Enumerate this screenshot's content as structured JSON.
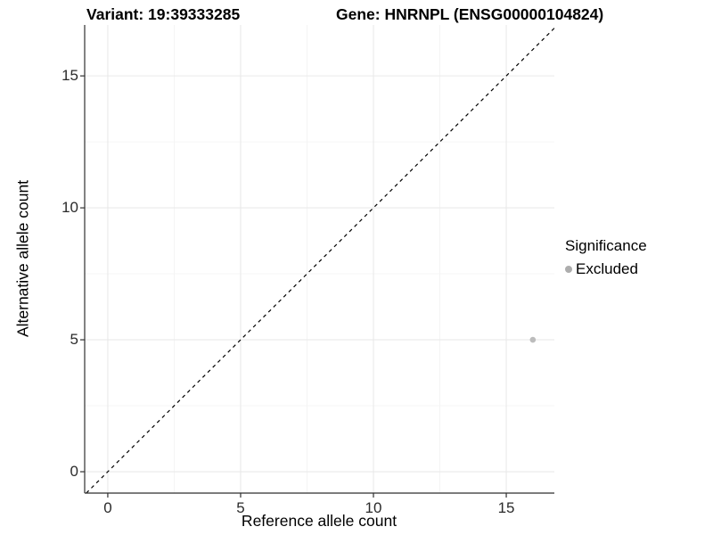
{
  "header": {
    "variant_title": "Variant: 19:39333285",
    "gene_title": "Gene: HNRNPL (ENSG00000104824)"
  },
  "chart_data": {
    "type": "scatter",
    "title": "Variant: 19:39333285 — Gene: HNRNPL (ENSG00000104824)",
    "xlabel": "Reference allele count",
    "ylabel": "Alternative allele count",
    "x_ticks": [
      0,
      5,
      10,
      15
    ],
    "y_ticks": [
      0,
      5,
      10,
      15
    ],
    "x_minor_ticks": [
      2.5,
      7.5,
      12.5
    ],
    "y_minor_ticks": [
      2.5,
      7.5,
      12.5
    ],
    "xlim": [
      -0.87,
      16.81
    ],
    "ylim": [
      -0.81,
      16.93
    ],
    "grid": true,
    "points": [
      {
        "x": 16,
        "y": 5,
        "series": "Excluded"
      }
    ],
    "identity_line": {
      "slope": 1,
      "intercept": 0,
      "style": "dashed"
    },
    "legend": {
      "title": "Significance",
      "position": "right",
      "entries": [
        {
          "label": "Excluded",
          "color": "#b5b5b5"
        }
      ]
    }
  },
  "colors": {
    "point": "#bcbcbc",
    "legend_point": "#adadad",
    "grid_major": "#e9e9e9",
    "grid_minor": "#f4f4f4",
    "axis_line": "#2f2f2f",
    "dashed_line": "#000000",
    "background": "#ffffff"
  }
}
